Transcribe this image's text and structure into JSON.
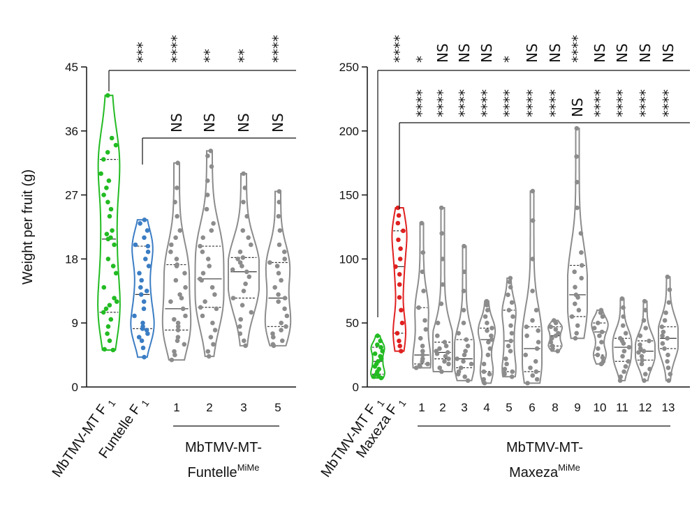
{
  "chart_data": [
    {
      "type": "violin",
      "ylabel": "Weight per fruit (g)",
      "ylim": [
        0,
        45
      ],
      "yticks": [
        0,
        9,
        18,
        27,
        36,
        45
      ],
      "group_label": "MbTMV-MT-",
      "group_label_line2": "Funtelle",
      "group_label_sup": "MiMe",
      "categories": [
        {
          "label": "MbTMV-MT F",
          "sub": "1",
          "color": "#22bb22",
          "min": 5.2,
          "q1": 10.5,
          "median": 20.8,
          "q3": 32.0,
          "max": 41.0,
          "sig_parent1": "",
          "sig_parent2": "",
          "pts": [
            5.2,
            5.3,
            6.5,
            7.5,
            8.5,
            9.5,
            10.5,
            11,
            11.5,
            12,
            12.5,
            14,
            16,
            17,
            18,
            20,
            20.8,
            21,
            21.5,
            22,
            24,
            25,
            26,
            27,
            28,
            29,
            30,
            32,
            33,
            34,
            35,
            41
          ]
        },
        {
          "label": "Funtelle F",
          "sub": "1",
          "color": "#3b7dc4",
          "min": 4.2,
          "q1": 8.2,
          "median": 13.0,
          "q3": 19.8,
          "max": 23.5,
          "sig_parent1": "***",
          "sig_parent2": "",
          "pts": [
            4.2,
            5.5,
            6.5,
            7,
            7.5,
            8,
            8.2,
            8.5,
            9,
            10,
            11,
            12,
            13,
            13.5,
            14,
            15,
            16,
            17,
            18,
            19,
            19.8,
            20,
            21,
            22,
            23,
            23.5
          ]
        },
        {
          "label": "1",
          "color": "#8c8c8c",
          "min": 3.8,
          "q1": 8.0,
          "median": 11.0,
          "q3": 17.2,
          "max": 31.5,
          "sig_parent1": "****",
          "sig_parent2": "NS",
          "pts": [
            3.8,
            4.5,
            5,
            6,
            6.5,
            7,
            8,
            8.5,
            9,
            9.5,
            10,
            11,
            12,
            12.5,
            13,
            14,
            15,
            16,
            17,
            17.2,
            18,
            19,
            20,
            21,
            22,
            24,
            26,
            28,
            31.5
          ]
        },
        {
          "label": "2",
          "color": "#8c8c8c",
          "min": 4.3,
          "q1": 11.2,
          "median": 15.2,
          "q3": 19.8,
          "max": 33.2,
          "sig_parent1": "**",
          "sig_parent2": "NS",
          "pts": [
            4.3,
            5,
            6,
            7,
            8,
            9,
            10,
            11,
            11.2,
            12,
            13,
            14,
            15,
            15.2,
            16,
            17,
            18,
            19,
            19.8,
            21,
            22,
            23,
            25,
            27,
            29,
            31,
            32.5,
            33.2
          ]
        },
        {
          "label": "3",
          "color": "#8c8c8c",
          "min": 5.8,
          "q1": 12.5,
          "median": 16.2,
          "q3": 18.2,
          "max": 30.0,
          "sig_parent1": "**",
          "sig_parent2": "NS",
          "pts": [
            5.8,
            6.5,
            7.5,
            8.5,
            9.5,
            10.5,
            11.5,
            12.5,
            13.5,
            14.5,
            15.5,
            16.2,
            16.5,
            17,
            17.5,
            18,
            18.2,
            19,
            20,
            21,
            22,
            24,
            26,
            28,
            30
          ]
        },
        {
          "label": "5",
          "color": "#8c8c8c",
          "min": 5.8,
          "q1": 8.5,
          "median": 12.5,
          "q3": 17.5,
          "max": 27.5,
          "sig_parent1": "****",
          "sig_parent2": "NS",
          "pts": [
            5.8,
            6,
            6.5,
            7,
            7.5,
            8,
            8.5,
            9,
            10,
            11,
            12,
            12.5,
            13,
            14,
            15,
            16,
            17,
            17.5,
            18,
            19,
            20,
            22,
            24,
            26,
            27.5
          ]
        }
      ]
    },
    {
      "type": "violin",
      "ylim": [
        0,
        250
      ],
      "yticks": [
        0,
        50,
        100,
        150,
        200,
        250
      ],
      "group_label": "MbTMV-MT-",
      "group_label_line2": "Maxeza",
      "group_label_sup": "MiMe",
      "categories": [
        {
          "label": "MbTMV-MT F",
          "sub": "1",
          "color": "#22bb22",
          "min": 7,
          "q1": 10,
          "median": 20,
          "q3": 31,
          "max": 40,
          "sig_parent1": "",
          "sig_parent2": "",
          "pts": [
            7,
            8,
            9,
            10,
            12,
            14,
            16,
            18,
            20,
            22,
            24,
            26,
            28,
            31,
            33,
            36,
            40
          ]
        },
        {
          "label": "Maxeza F",
          "sub": "1",
          "color": "#e02020",
          "min": 28,
          "q1": 42,
          "median": 94,
          "q3": 122,
          "max": 140,
          "sig_parent1": "****",
          "sig_parent2": "",
          "pts": [
            28,
            32,
            36,
            42,
            50,
            60,
            70,
            80,
            88,
            94,
            100,
            108,
            115,
            122,
            128,
            134,
            140
          ]
        },
        {
          "label": "1",
          "color": "#8c8c8c",
          "min": 15,
          "q1": 18,
          "median": 25,
          "q3": 62,
          "max": 128,
          "sig_parent1": "*",
          "sig_parent2": "****",
          "pts": [
            15,
            16,
            17,
            18,
            20,
            22,
            25,
            28,
            32,
            38,
            45,
            52,
            62,
            75,
            90,
            105,
            128
          ]
        },
        {
          "label": "2",
          "color": "#8c8c8c",
          "min": 12,
          "q1": 22,
          "median": 27,
          "q3": 35,
          "max": 140,
          "sig_parent1": "NS",
          "sig_parent2": "****",
          "pts": [
            12,
            15,
            18,
            20,
            22,
            24,
            26,
            27,
            28,
            30,
            32,
            35,
            40,
            50,
            65,
            80,
            100,
            120,
            140
          ]
        },
        {
          "label": "3",
          "color": "#8c8c8c",
          "min": 5,
          "q1": 15,
          "median": 22,
          "q3": 37,
          "max": 110,
          "sig_parent1": "NS",
          "sig_parent2": "****",
          "pts": [
            5,
            8,
            10,
            12,
            15,
            18,
            20,
            22,
            25,
            28,
            32,
            37,
            42,
            50,
            60,
            75,
            90,
            110
          ]
        },
        {
          "label": "4",
          "color": "#8c8c8c",
          "min": 3,
          "q1": 12,
          "median": 37,
          "q3": 46,
          "max": 67,
          "sig_parent1": "NS",
          "sig_parent2": "****",
          "pts": [
            3,
            6,
            10,
            12,
            18,
            25,
            30,
            35,
            37,
            40,
            44,
            46,
            50,
            55,
            60,
            64,
            67
          ]
        },
        {
          "label": "5",
          "color": "#8c8c8c",
          "min": 8,
          "q1": 12,
          "median": 36,
          "q3": 60,
          "max": 85,
          "sig_parent1": "*",
          "sig_parent2": "****",
          "pts": [
            8,
            10,
            11,
            12,
            14,
            18,
            22,
            28,
            32,
            36,
            42,
            48,
            55,
            60,
            66,
            72,
            78,
            82,
            85
          ]
        },
        {
          "label": "6",
          "color": "#8c8c8c",
          "min": 3,
          "q1": 12,
          "median": 30,
          "q3": 47,
          "max": 153,
          "sig_parent1": "NS",
          "sig_parent2": "****",
          "pts": [
            3,
            6,
            9,
            12,
            15,
            20,
            25,
            30,
            35,
            40,
            44,
            47,
            52,
            60,
            75,
            100,
            130,
            153
          ]
        },
        {
          "label": "8",
          "color": "#8c8c8c",
          "min": 28,
          "q1": 32,
          "median": 40,
          "q3": 47,
          "max": 52,
          "sig_parent1": "NS",
          "sig_parent2": "****",
          "pts": [
            28,
            30,
            32,
            35,
            38,
            40,
            42,
            45,
            47,
            50,
            52
          ]
        },
        {
          "label": "9",
          "color": "#8c8c8c",
          "min": 38,
          "q1": 55,
          "median": 72,
          "q3": 95,
          "max": 202,
          "sig_parent1": "****",
          "sig_parent2": "NS",
          "pts": [
            38,
            42,
            48,
            55,
            60,
            65,
            70,
            72,
            78,
            85,
            90,
            95,
            105,
            120,
            140,
            160,
            180,
            202
          ]
        },
        {
          "label": "10",
          "color": "#8c8c8c",
          "min": 18,
          "q1": 25,
          "median": 43,
          "q3": 50,
          "max": 60,
          "sig_parent1": "NS",
          "sig_parent2": "****",
          "pts": [
            18,
            20,
            23,
            25,
            30,
            35,
            40,
            43,
            46,
            50,
            55,
            58,
            60
          ]
        },
        {
          "label": "11",
          "color": "#8c8c8c",
          "min": 5,
          "q1": 20,
          "median": 31,
          "q3": 38,
          "max": 69,
          "sig_parent1": "NS",
          "sig_parent2": "****",
          "pts": [
            5,
            8,
            12,
            16,
            20,
            24,
            28,
            31,
            34,
            36,
            38,
            42,
            48,
            55,
            62,
            69
          ]
        },
        {
          "label": "12",
          "color": "#8c8c8c",
          "min": 5,
          "q1": 21,
          "median": 28,
          "q3": 36,
          "max": 67,
          "sig_parent1": "NS",
          "sig_parent2": "****",
          "pts": [
            5,
            10,
            14,
            18,
            21,
            24,
            27,
            28,
            30,
            33,
            36,
            40,
            46,
            52,
            60,
            67
          ]
        },
        {
          "label": "13",
          "color": "#8c8c8c",
          "min": 5,
          "q1": 30,
          "median": 38,
          "q3": 47,
          "max": 86,
          "sig_parent1": "NS",
          "sig_parent2": "****",
          "pts": [
            5,
            10,
            15,
            20,
            25,
            30,
            34,
            38,
            40,
            43,
            47,
            52,
            58,
            66,
            76,
            86
          ]
        }
      ]
    }
  ]
}
